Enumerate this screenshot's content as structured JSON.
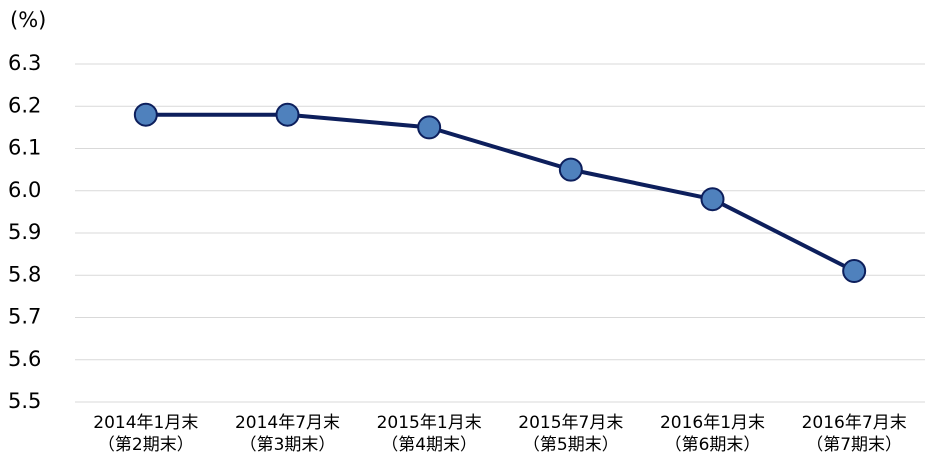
{
  "chart_data": {
    "type": "line",
    "unit_label": "(%)",
    "categories": [
      "2014年1月末\n（第2期末）",
      "2014年7月末\n（第3期末）",
      "2015年1月末\n（第4期末）",
      "2015年7月末\n（第5期末）",
      "2016年1月末\n（第6期末）",
      "2016年7月末\n（第7期末）"
    ],
    "values": [
      6.18,
      6.18,
      6.15,
      6.05,
      5.98,
      5.81
    ],
    "color": "#0d1f5c",
    "marker_color": "#4f81bd",
    "ylim": [
      5.5,
      6.3
    ],
    "yticks": [
      5.5,
      5.6,
      5.7,
      5.8,
      5.9,
      {
        "value": 6,
        "label": "6.0"
      },
      6.1,
      6.2,
      6.3
    ],
    "grid": true
  }
}
